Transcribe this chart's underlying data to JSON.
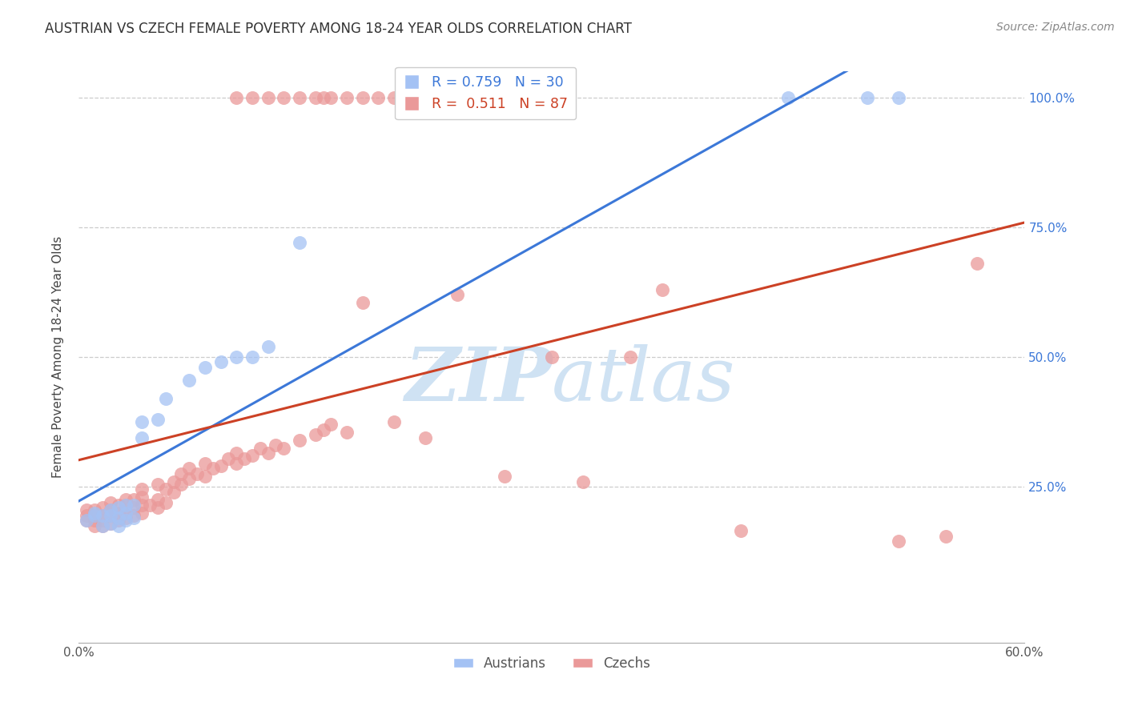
{
  "title": "AUSTRIAN VS CZECH FEMALE POVERTY AMONG 18-24 YEAR OLDS CORRELATION CHART",
  "source": "Source: ZipAtlas.com",
  "ylabel": "Female Poverty Among 18-24 Year Olds",
  "x_min": 0.0,
  "x_max": 0.6,
  "y_min": -0.05,
  "y_max": 1.05,
  "austrian_R": 0.759,
  "austrian_N": 30,
  "czech_R": 0.511,
  "czech_N": 87,
  "austrian_color": "#a4c2f4",
  "czech_color": "#ea9999",
  "austrian_line_color": "#3c78d8",
  "czech_line_color": "#cc4125",
  "watermark_color": "#cfe2f3",
  "austrian_scatter_x": [
    0.005,
    0.01,
    0.01,
    0.015,
    0.015,
    0.02,
    0.02,
    0.02,
    0.025,
    0.025,
    0.025,
    0.03,
    0.03,
    0.03,
    0.035,
    0.035,
    0.04,
    0.04,
    0.05,
    0.055,
    0.07,
    0.08,
    0.09,
    0.1,
    0.11,
    0.12,
    0.14,
    0.45,
    0.5,
    0.52
  ],
  "austrian_scatter_y": [
    0.185,
    0.195,
    0.2,
    0.175,
    0.195,
    0.18,
    0.195,
    0.205,
    0.175,
    0.19,
    0.21,
    0.185,
    0.2,
    0.215,
    0.19,
    0.215,
    0.345,
    0.375,
    0.38,
    0.42,
    0.455,
    0.48,
    0.49,
    0.5,
    0.5,
    0.52,
    0.72,
    1.0,
    1.0,
    1.0
  ],
  "czech_scatter_x": [
    0.005,
    0.005,
    0.005,
    0.01,
    0.01,
    0.01,
    0.01,
    0.015,
    0.015,
    0.015,
    0.015,
    0.02,
    0.02,
    0.02,
    0.02,
    0.025,
    0.025,
    0.025,
    0.03,
    0.03,
    0.03,
    0.03,
    0.035,
    0.035,
    0.035,
    0.04,
    0.04,
    0.04,
    0.04,
    0.045,
    0.05,
    0.05,
    0.05,
    0.055,
    0.055,
    0.06,
    0.06,
    0.065,
    0.065,
    0.07,
    0.07,
    0.075,
    0.08,
    0.08,
    0.085,
    0.09,
    0.095,
    0.1,
    0.1,
    0.105,
    0.11,
    0.115,
    0.12,
    0.125,
    0.13,
    0.14,
    0.15,
    0.155,
    0.16,
    0.17,
    0.18,
    0.2,
    0.22,
    0.24,
    0.27,
    0.3,
    0.32,
    0.35,
    0.1,
    0.11,
    0.12,
    0.13,
    0.14,
    0.15,
    0.155,
    0.16,
    0.17,
    0.18,
    0.19,
    0.2,
    0.21,
    0.22,
    0.37,
    0.42,
    0.52,
    0.55,
    0.57
  ],
  "czech_scatter_y": [
    0.185,
    0.195,
    0.205,
    0.175,
    0.185,
    0.195,
    0.205,
    0.175,
    0.185,
    0.195,
    0.21,
    0.18,
    0.195,
    0.205,
    0.22,
    0.185,
    0.2,
    0.215,
    0.19,
    0.2,
    0.215,
    0.225,
    0.195,
    0.21,
    0.225,
    0.2,
    0.215,
    0.23,
    0.245,
    0.215,
    0.21,
    0.225,
    0.255,
    0.22,
    0.245,
    0.24,
    0.26,
    0.255,
    0.275,
    0.265,
    0.285,
    0.275,
    0.27,
    0.295,
    0.285,
    0.29,
    0.305,
    0.295,
    0.315,
    0.305,
    0.31,
    0.325,
    0.315,
    0.33,
    0.325,
    0.34,
    0.35,
    0.36,
    0.37,
    0.355,
    0.605,
    0.375,
    0.345,
    0.62,
    0.27,
    0.5,
    0.26,
    0.5,
    1.0,
    1.0,
    1.0,
    1.0,
    1.0,
    1.0,
    1.0,
    1.0,
    1.0,
    1.0,
    1.0,
    1.0,
    1.0,
    1.0,
    0.63,
    0.165,
    0.145,
    0.155,
    0.68
  ]
}
